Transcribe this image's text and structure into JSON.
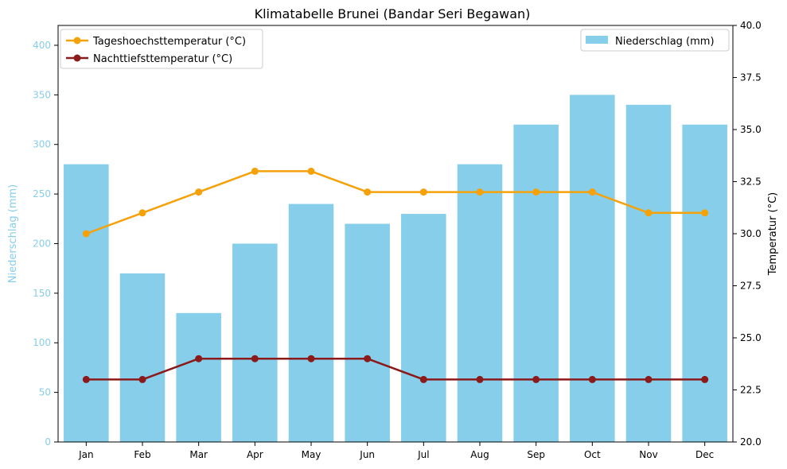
{
  "chart_data": {
    "type": "bar",
    "title": "Klimatabelle Brunei (Bandar Seri Begawan)",
    "categories": [
      "Jan",
      "Feb",
      "Mar",
      "Apr",
      "May",
      "Jun",
      "Jul",
      "Aug",
      "Sep",
      "Oct",
      "Nov",
      "Dec"
    ],
    "left_axis": {
      "label": "Niederschlag (mm)",
      "ylim": [
        0,
        420
      ],
      "ticks": [
        0,
        50,
        100,
        150,
        200,
        250,
        300,
        350,
        400
      ],
      "color": "#87CEEB"
    },
    "right_axis": {
      "label": "Temperatur (°C)",
      "ylim": [
        20.0,
        40.0
      ],
      "ticks": [
        "20.0",
        "22.5",
        "25.0",
        "27.5",
        "30.0",
        "32.5",
        "35.0",
        "37.5",
        "40.0"
      ],
      "color": "#000000"
    },
    "series": [
      {
        "name": "Niederschlag (mm)",
        "type": "bar",
        "axis": "left",
        "color": "#87CEEB",
        "values": [
          280,
          170,
          130,
          200,
          240,
          220,
          230,
          280,
          320,
          350,
          340,
          320
        ]
      },
      {
        "name": "Tageshoechsttemperatur (°C)",
        "type": "line",
        "axis": "right",
        "color": "#F5A20A",
        "values": [
          30,
          31,
          32,
          33,
          33,
          32,
          32,
          32,
          32,
          32,
          31,
          31
        ]
      },
      {
        "name": "Nachttiefsttemperatur (°C)",
        "type": "line",
        "axis": "right",
        "color": "#8B1A1A",
        "values": [
          23,
          23,
          24,
          24,
          24,
          24,
          23,
          23,
          23,
          23,
          23,
          23
        ]
      }
    ],
    "legend_lines_position": "upper-left",
    "legend_bars_position": "upper-right",
    "grid": false
  }
}
